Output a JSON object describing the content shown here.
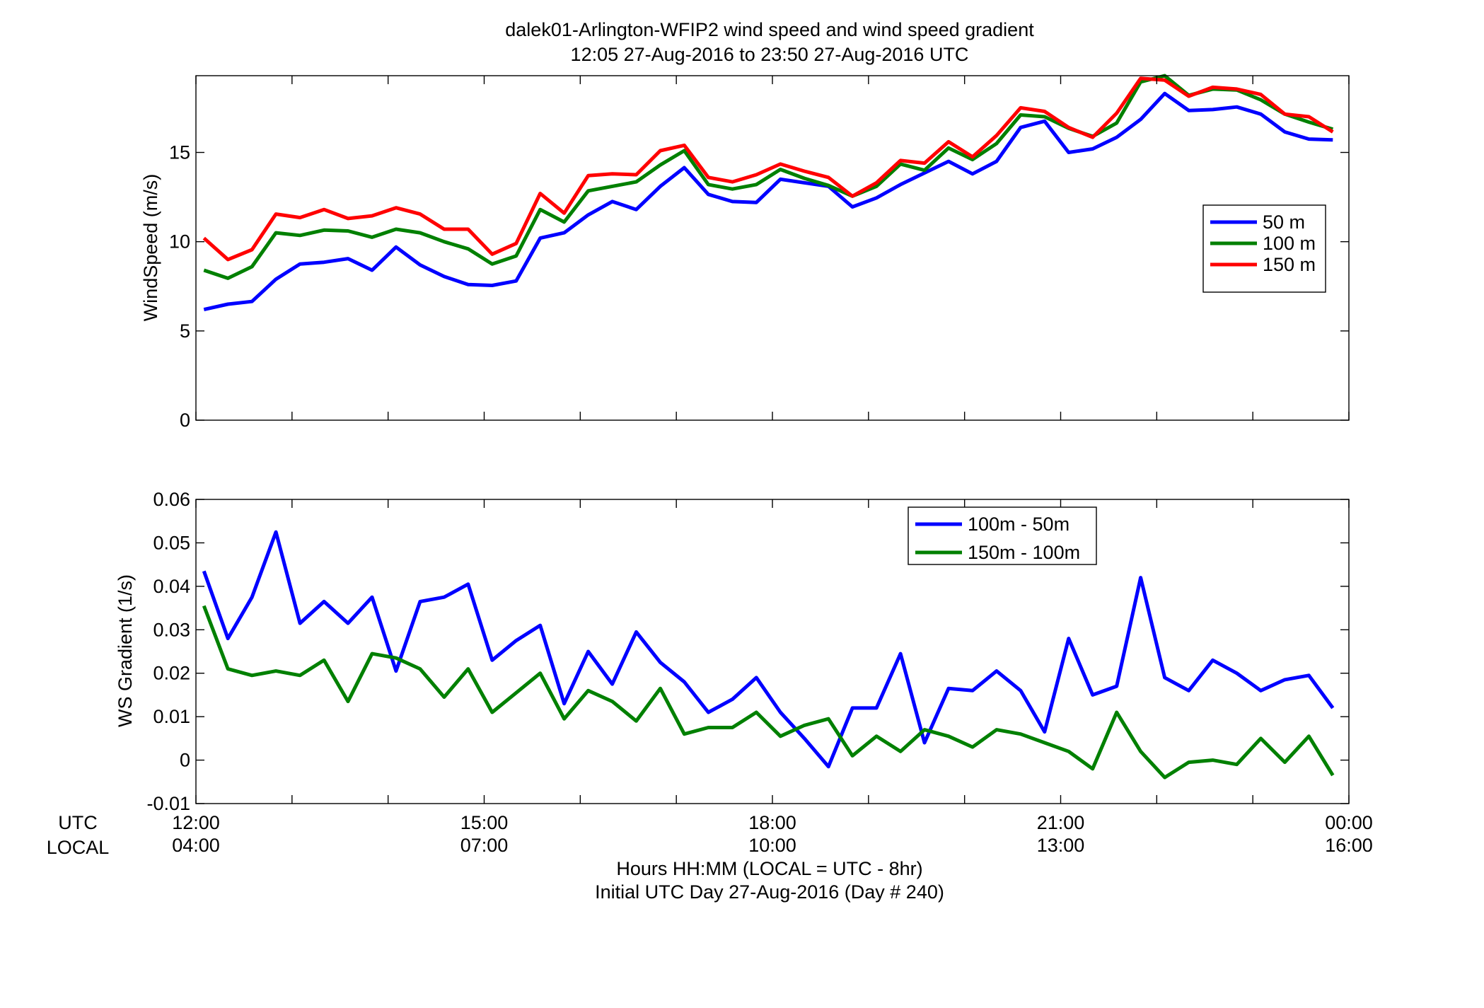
{
  "title_line1": "dalek01-Arlington-WFIP2  wind speed and wind speed gradient",
  "title_line2": "12:05 27-Aug-2016 to 23:50 27-Aug-2016  UTC",
  "utc_row_label": "UTC",
  "local_row_label": "LOCAL",
  "xlabel_line1": "Hours HH:MM  (LOCAL = UTC - 8hr)",
  "xlabel_line2": "Initial UTC Day 27-Aug-2016 (Day # 240)",
  "time_ticks": [
    {
      "utc": "12:00",
      "local": "04:00",
      "hour": 12
    },
    {
      "utc": "15:00",
      "local": "07:00",
      "hour": 15
    },
    {
      "utc": "18:00",
      "local": "10:00",
      "hour": 18
    },
    {
      "utc": "21:00",
      "local": "13:00",
      "hour": 21
    },
    {
      "utc": "00:00",
      "local": "16:00",
      "hour": 24
    }
  ],
  "chart_data": [
    {
      "type": "line",
      "ylabel": "WindSpeed (m/s)",
      "xlim": [
        12,
        24
      ],
      "ylim": [
        0,
        19.3
      ],
      "yticks": [
        0,
        5,
        10,
        15
      ],
      "ytick_labels": [
        "0",
        "5",
        "10",
        "15"
      ],
      "grid": false,
      "legend_position": "right",
      "x": [
        12.083,
        12.333,
        12.583,
        12.833,
        13.083,
        13.333,
        13.583,
        13.833,
        14.083,
        14.333,
        14.583,
        14.833,
        15.083,
        15.333,
        15.583,
        15.833,
        16.083,
        16.333,
        16.583,
        16.833,
        17.083,
        17.333,
        17.583,
        17.833,
        18.083,
        18.333,
        18.583,
        18.833,
        19.083,
        19.333,
        19.583,
        19.833,
        20.083,
        20.333,
        20.583,
        20.833,
        21.083,
        21.333,
        21.583,
        21.833,
        22.083,
        22.333,
        22.583,
        22.833,
        23.083,
        23.333,
        23.583,
        23.833
      ],
      "series": [
        {
          "name": "50 m",
          "color": "#0000ff",
          "values": [
            6.2,
            6.5,
            6.65,
            7.9,
            8.75,
            8.85,
            9.05,
            8.4,
            9.7,
            8.7,
            8.05,
            7.6,
            7.55,
            7.8,
            10.2,
            10.5,
            11.5,
            12.25,
            11.8,
            13.1,
            14.15,
            12.65,
            12.25,
            12.2,
            13.5,
            13.3,
            13.1,
            11.95,
            12.45,
            13.2,
            13.85,
            14.5,
            13.8,
            14.5,
            16.4,
            16.75,
            15.0,
            15.2,
            15.85,
            16.85,
            18.3,
            17.35,
            17.4,
            17.55,
            17.15,
            16.15,
            15.75,
            15.7
          ]
        },
        {
          "name": "100 m",
          "color": "#008000",
          "values": [
            8.4,
            7.95,
            8.6,
            10.5,
            10.35,
            10.65,
            10.6,
            10.25,
            10.7,
            10.5,
            10.0,
            9.6,
            8.75,
            9.2,
            11.8,
            11.1,
            12.85,
            13.1,
            13.35,
            14.3,
            15.1,
            13.2,
            12.95,
            13.2,
            14.05,
            13.55,
            13.15,
            12.55,
            13.1,
            14.35,
            14.0,
            15.25,
            14.6,
            15.5,
            17.1,
            17.0,
            16.35,
            15.9,
            16.65,
            18.95,
            19.3,
            18.2,
            18.55,
            18.5,
            17.95,
            17.15,
            16.7,
            16.3
          ]
        },
        {
          "name": "150 m",
          "color": "#ff0000",
          "values": [
            10.2,
            9.0,
            9.55,
            11.55,
            11.35,
            11.8,
            11.3,
            11.45,
            11.9,
            11.55,
            10.7,
            10.7,
            9.3,
            9.9,
            12.7,
            11.6,
            13.7,
            13.8,
            13.75,
            15.1,
            15.4,
            13.6,
            13.35,
            13.75,
            14.35,
            13.95,
            13.6,
            12.55,
            13.3,
            14.55,
            14.4,
            15.6,
            14.75,
            15.95,
            17.5,
            17.3,
            16.4,
            15.85,
            17.2,
            19.15,
            19.05,
            18.15,
            18.65,
            18.55,
            18.25,
            17.15,
            17.0,
            16.15
          ]
        }
      ]
    },
    {
      "type": "line",
      "ylabel": "WS Gradient (1/s)",
      "xlim": [
        12,
        24
      ],
      "ylim": [
        -0.01,
        0.06
      ],
      "yticks": [
        -0.01,
        0,
        0.01,
        0.02,
        0.03,
        0.04,
        0.05,
        0.06
      ],
      "ytick_labels": [
        "-0.01",
        "0",
        "0.01",
        "0.02",
        "0.03",
        "0.04",
        "0.05",
        "0.06"
      ],
      "grid": false,
      "legend_position": "top-right",
      "x": [
        12.083,
        12.333,
        12.583,
        12.833,
        13.083,
        13.333,
        13.583,
        13.833,
        14.083,
        14.333,
        14.583,
        14.833,
        15.083,
        15.333,
        15.583,
        15.833,
        16.083,
        16.333,
        16.583,
        16.833,
        17.083,
        17.333,
        17.583,
        17.833,
        18.083,
        18.333,
        18.583,
        18.833,
        19.083,
        19.333,
        19.583,
        19.833,
        20.083,
        20.333,
        20.583,
        20.833,
        21.083,
        21.333,
        21.583,
        21.833,
        22.083,
        22.333,
        22.583,
        22.833,
        23.083,
        23.333,
        23.583,
        23.833
      ],
      "series": [
        {
          "name": "100m - 50m",
          "color": "#0000ff",
          "values": [
            0.0435,
            0.028,
            0.0375,
            0.0525,
            0.0315,
            0.0365,
            0.0315,
            0.0375,
            0.0205,
            0.0365,
            0.0375,
            0.0405,
            0.023,
            0.0275,
            0.031,
            0.013,
            0.025,
            0.0175,
            0.0295,
            0.0225,
            0.018,
            0.011,
            0.014,
            0.019,
            0.011,
            0.005,
            -0.0015,
            0.012,
            0.012,
            0.0245,
            0.004,
            0.0165,
            0.016,
            0.0205,
            0.016,
            0.0065,
            0.028,
            0.015,
            0.017,
            0.042,
            0.019,
            0.016,
            0.023,
            0.02,
            0.016,
            0.0185,
            0.0195,
            0.012
          ]
        },
        {
          "name": "150m - 100m",
          "color": "#008000",
          "values": [
            0.0355,
            0.021,
            0.0195,
            0.0205,
            0.0195,
            0.023,
            0.0135,
            0.0245,
            0.0235,
            0.021,
            0.0145,
            0.021,
            0.011,
            0.0155,
            0.02,
            0.0095,
            0.016,
            0.0135,
            0.009,
            0.0165,
            0.006,
            0.0075,
            0.0075,
            0.011,
            0.0055,
            0.008,
            0.0095,
            0.001,
            0.0055,
            0.002,
            0.007,
            0.0055,
            0.003,
            0.007,
            0.006,
            0.004,
            0.002,
            -0.002,
            0.011,
            0.002,
            -0.004,
            -0.0005,
            0.0,
            -0.001,
            0.005,
            -0.0005,
            0.0055,
            -0.0035
          ]
        }
      ]
    }
  ]
}
